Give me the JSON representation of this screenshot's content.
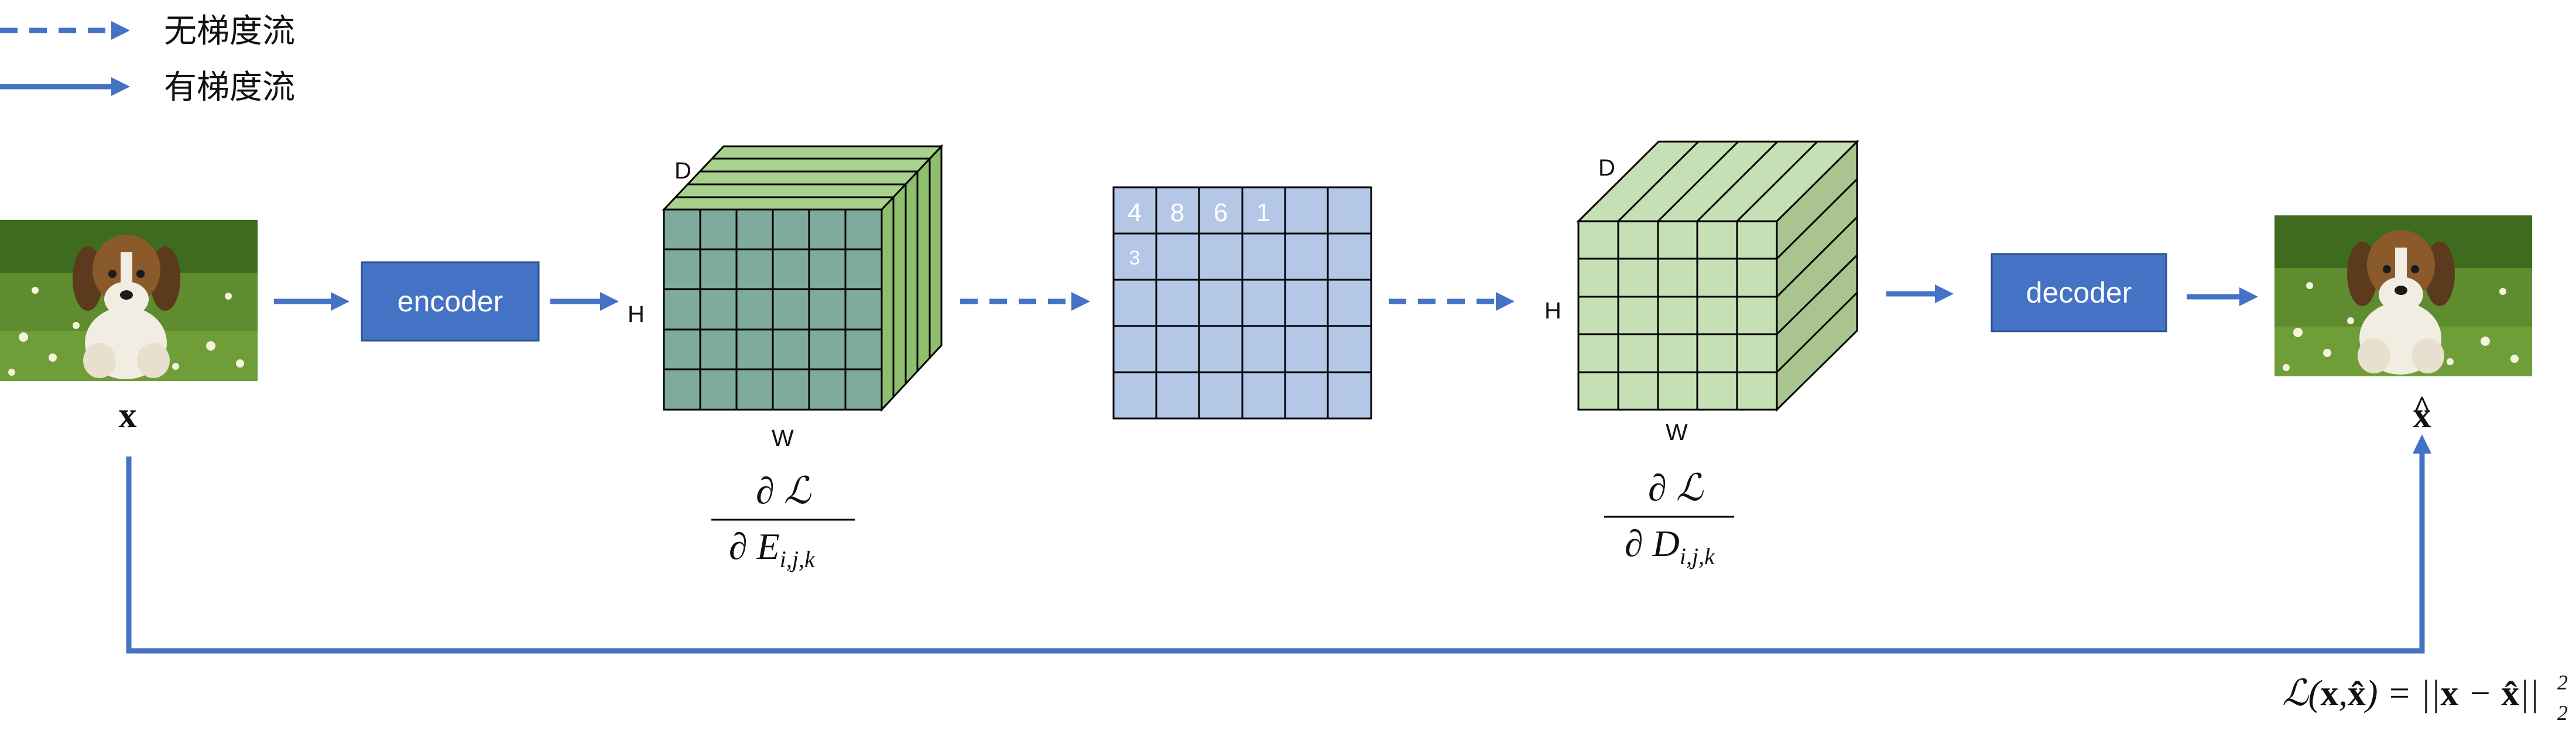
{
  "legend": {
    "no_grad_label": "无梯度流",
    "grad_label": "有梯度流"
  },
  "nodes": {
    "input_label": "x",
    "output_label": "x",
    "output_hat": "^",
    "encoder_label": "encoder",
    "decoder_label": "decoder"
  },
  "encoder_tensor": {
    "axis_d": "D",
    "axis_h": "H",
    "axis_w": "W",
    "grad_numerator": "∂ ℒ",
    "grad_denominator_symbol": "∂ E",
    "grad_denominator_subscript": "i,j,k"
  },
  "index_grid": {
    "row0": [
      "4",
      "8",
      "6",
      "1"
    ],
    "row1": [
      "3"
    ]
  },
  "decoder_tensor": {
    "axis_d": "D",
    "axis_h": "H",
    "axis_w": "W",
    "grad_numerator": "∂ ℒ",
    "grad_denominator_symbol": "∂ D",
    "grad_denominator_subscript": "i,j,k"
  },
  "loss": {
    "prefix": "ℒ(",
    "x": "x",
    "comma": ",",
    "xhat": "x̂",
    "mid": ") = ||",
    "x2": "x",
    "minus": " − ",
    "xhat2": "x̂",
    "close": "||",
    "superscript": "2",
    "subscript": "2"
  },
  "colors": {
    "flow": "#4472c4",
    "box": "#4472c4",
    "encoder_front": "#7eab9c",
    "encoder_side": "#8fbf6e",
    "decoder_front": "#c5e0b4",
    "decoder_side": "#a9c48f",
    "grid": "#b4c7e7"
  }
}
